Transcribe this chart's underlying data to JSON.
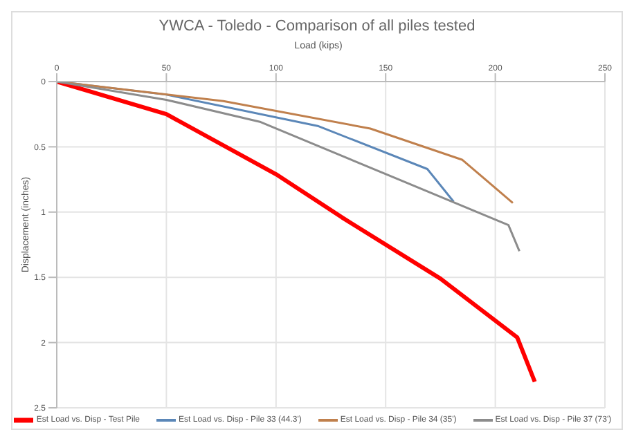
{
  "chart_data": {
    "type": "line",
    "title": "YWCA - Toledo - Comparison of all piles tested",
    "xlabel": "Load (kips)",
    "ylabel": "Displacement (inches)",
    "xlim": [
      0,
      250
    ],
    "xticks": [
      0,
      50,
      100,
      150,
      200,
      250
    ],
    "ylim": [
      2.5,
      0
    ],
    "yticks": [
      0,
      0.5,
      1,
      1.5,
      2,
      2.5
    ],
    "grid": true,
    "legend": "bottom",
    "marker": "none",
    "series": [
      {
        "name": "Est Load vs. Disp - Test Pile",
        "color": "#ff0000",
        "x": [
          0,
          50,
          100,
          130,
          175,
          210,
          218
        ],
        "values": [
          0,
          0.25,
          0.71,
          1.04,
          1.51,
          1.96,
          2.3
        ]
      },
      {
        "name": "Est Load vs. Disp - Pile 33 (44.3')",
        "color": "#5b87b8",
        "x": [
          0,
          50,
          119,
          169,
          181
        ],
        "values": [
          0,
          0.1,
          0.34,
          0.67,
          0.92
        ]
      },
      {
        "name": "Est Load vs. Disp - Pile 34 (35')",
        "color": "#c0804d",
        "x": [
          0,
          76,
          143,
          185,
          208
        ],
        "values": [
          0,
          0.15,
          0.36,
          0.6,
          0.93
        ]
      },
      {
        "name": "Est Load vs. Disp - Pile 37 (73')",
        "color": "#8c8c8c",
        "x": [
          0,
          50,
          93,
          206,
          211
        ],
        "values": [
          0,
          0.14,
          0.31,
          1.1,
          1.3
        ]
      }
    ]
  }
}
